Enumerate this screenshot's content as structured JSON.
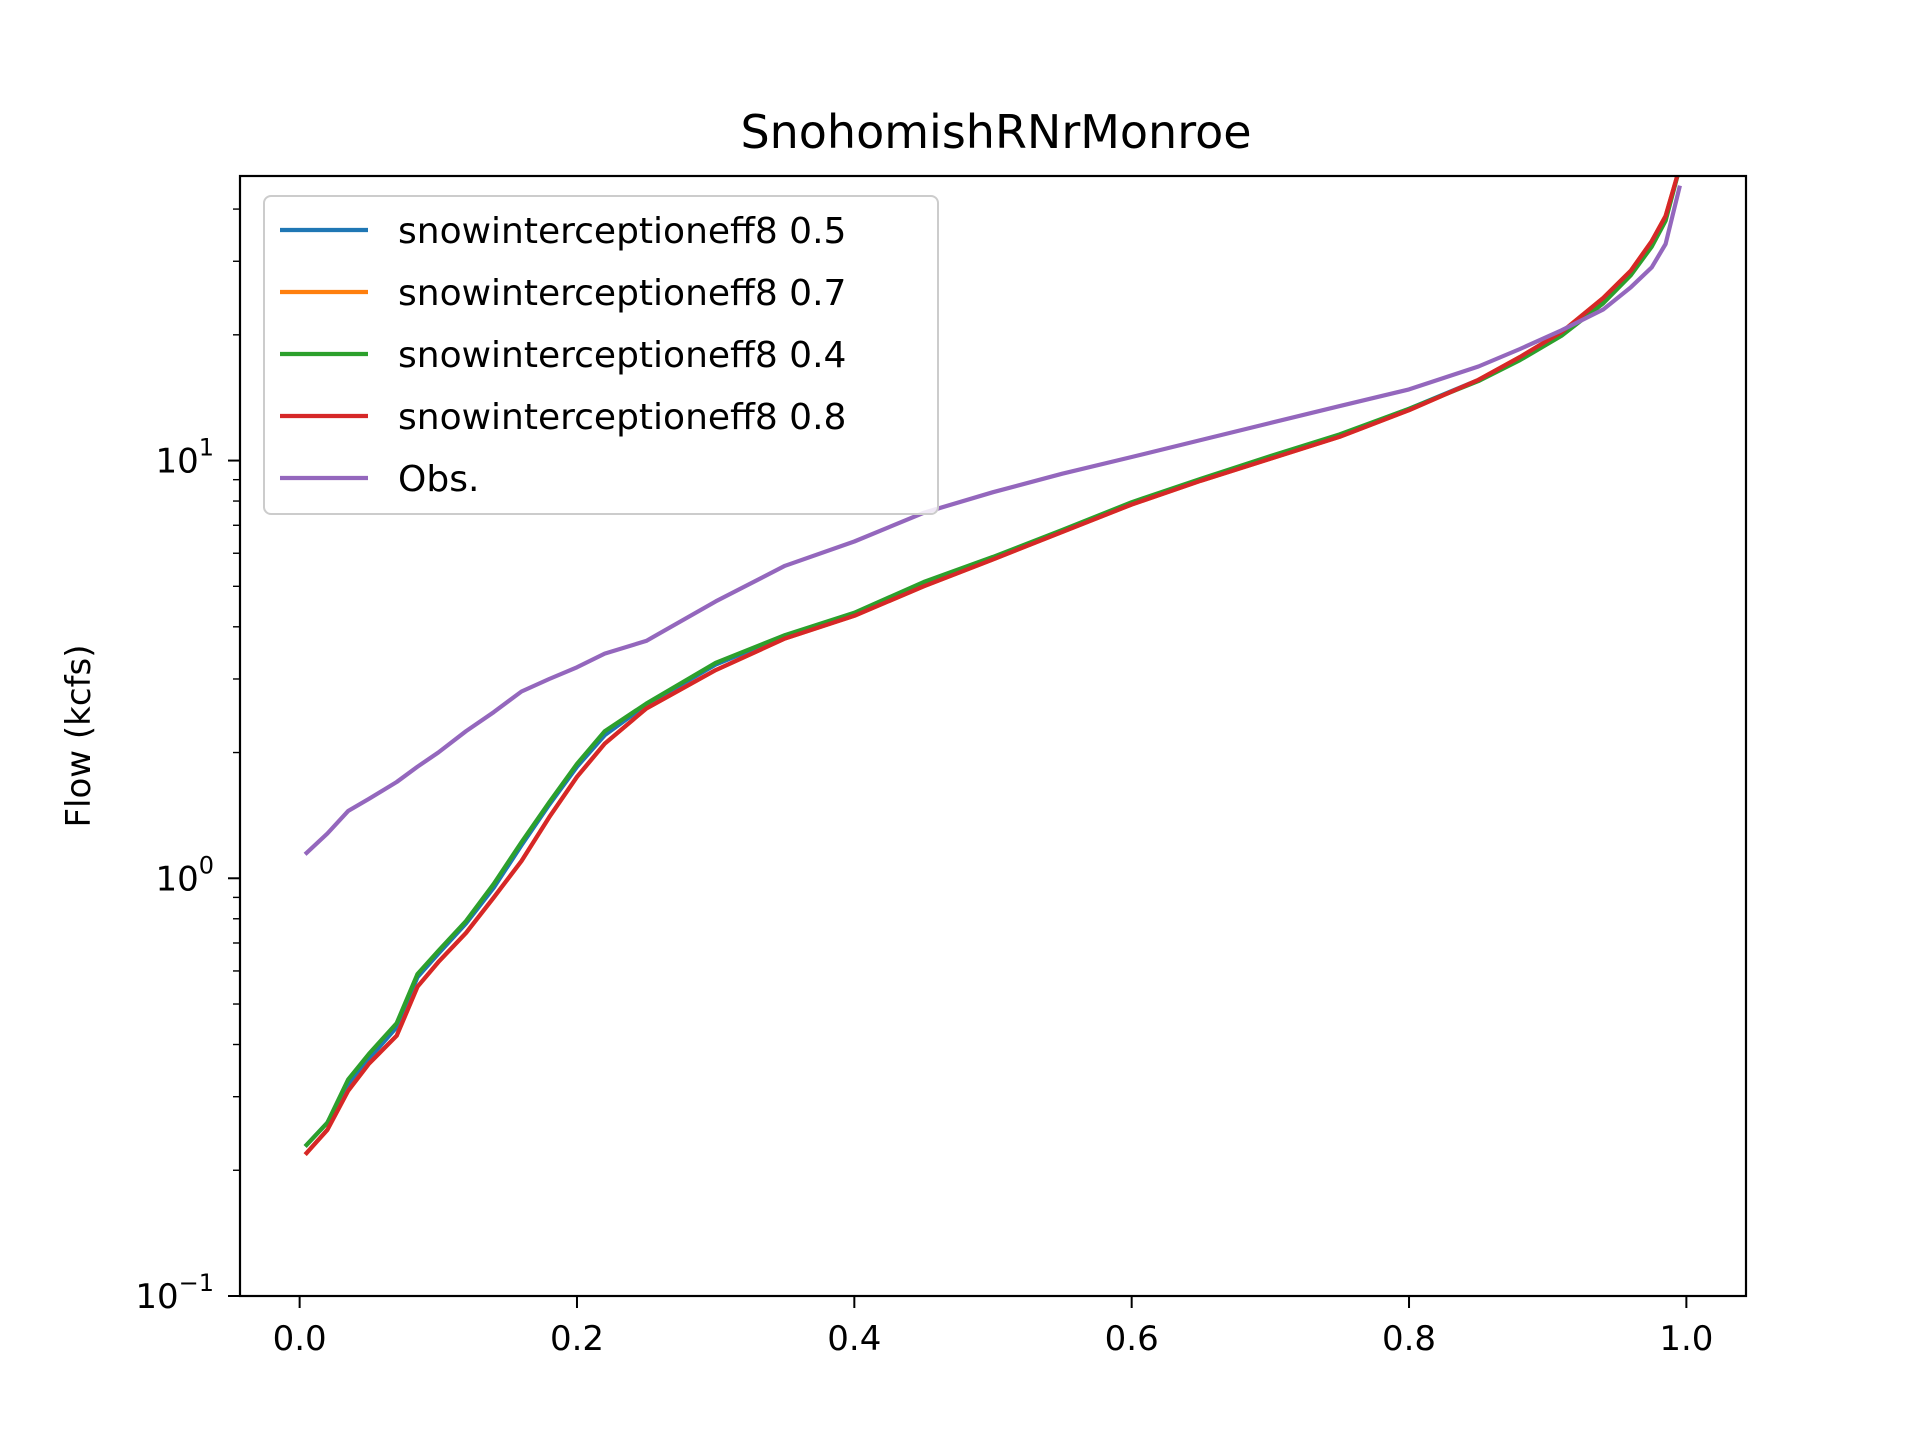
{
  "chart_data": {
    "type": "line",
    "title": "SnohomishRNrMonroe",
    "xlabel": "",
    "ylabel": "Flow (kcfs)",
    "xlim": [
      -0.043,
      1.043
    ],
    "ylim": [
      0.1,
      48
    ],
    "yscale": "log",
    "xticks": [
      "0.0",
      "0.2",
      "0.4",
      "0.6",
      "0.8",
      "1.0"
    ],
    "xtick_values": [
      0.0,
      0.2,
      0.4,
      0.6,
      0.8,
      1.0
    ],
    "yticks": [
      {
        "value": 0.1,
        "base": "10",
        "exp": "−1"
      },
      {
        "value": 1,
        "base": "10",
        "exp": "0"
      },
      {
        "value": 10,
        "base": "10",
        "exp": "1"
      }
    ],
    "grid": false,
    "legend_position": "top-left",
    "x": [
      0.005,
      0.02,
      0.035,
      0.05,
      0.07,
      0.085,
      0.1,
      0.12,
      0.14,
      0.16,
      0.18,
      0.2,
      0.22,
      0.25,
      0.3,
      0.35,
      0.4,
      0.45,
      0.5,
      0.55,
      0.6,
      0.65,
      0.7,
      0.75,
      0.8,
      0.85,
      0.88,
      0.91,
      0.94,
      0.96,
      0.975,
      0.985,
      0.995
    ],
    "series": [
      {
        "name": "snowinterceptioneff8 0.5",
        "color": "#1f77b4",
        "values": [
          0.23,
          0.26,
          0.32,
          0.37,
          0.44,
          0.58,
          0.66,
          0.78,
          0.95,
          1.2,
          1.5,
          1.85,
          2.2,
          2.6,
          3.25,
          3.8,
          4.3,
          5.1,
          5.85,
          6.8,
          7.9,
          9.0,
          10.2,
          11.5,
          13.3,
          15.6,
          17.5,
          20.0,
          24.0,
          28.0,
          33.0,
          38.0,
          50.0
        ]
      },
      {
        "name": "snowinterceptioneff8 0.7",
        "color": "#ff7f0e",
        "values": [
          0.22,
          0.25,
          0.31,
          0.36,
          0.42,
          0.55,
          0.63,
          0.74,
          0.9,
          1.1,
          1.4,
          1.75,
          2.1,
          2.55,
          3.15,
          3.75,
          4.25,
          5.0,
          5.8,
          6.75,
          7.85,
          8.95,
          10.1,
          11.4,
          13.2,
          15.6,
          17.7,
          20.3,
          24.5,
          28.5,
          33.5,
          38.5,
          50.0
        ]
      },
      {
        "name": "snowinterceptioneff8 0.4",
        "color": "#2ca02c",
        "values": [
          0.23,
          0.26,
          0.33,
          0.38,
          0.45,
          0.59,
          0.67,
          0.79,
          0.97,
          1.22,
          1.52,
          1.88,
          2.25,
          2.62,
          3.28,
          3.82,
          4.32,
          5.12,
          5.88,
          6.82,
          7.95,
          9.05,
          10.25,
          11.55,
          13.3,
          15.5,
          17.4,
          19.9,
          23.8,
          27.8,
          32.5,
          37.5,
          50.0
        ]
      },
      {
        "name": "snowinterceptioneff8 0.8",
        "color": "#d62728",
        "values": [
          0.22,
          0.25,
          0.31,
          0.36,
          0.42,
          0.55,
          0.63,
          0.74,
          0.9,
          1.1,
          1.4,
          1.75,
          2.1,
          2.55,
          3.15,
          3.75,
          4.25,
          5.0,
          5.8,
          6.75,
          7.85,
          8.95,
          10.1,
          11.4,
          13.2,
          15.6,
          17.7,
          20.3,
          24.5,
          28.5,
          33.5,
          38.5,
          50.0
        ]
      },
      {
        "name": "Obs.",
        "color": "#9467bd",
        "values": [
          1.15,
          1.28,
          1.45,
          1.55,
          1.7,
          1.85,
          2.0,
          2.25,
          2.5,
          2.8,
          3.0,
          3.2,
          3.45,
          3.7,
          4.6,
          5.6,
          6.4,
          7.5,
          8.4,
          9.3,
          10.2,
          11.2,
          12.3,
          13.5,
          14.8,
          16.8,
          18.5,
          20.5,
          23.0,
          26.0,
          29.0,
          33.0,
          45.0
        ]
      }
    ]
  }
}
